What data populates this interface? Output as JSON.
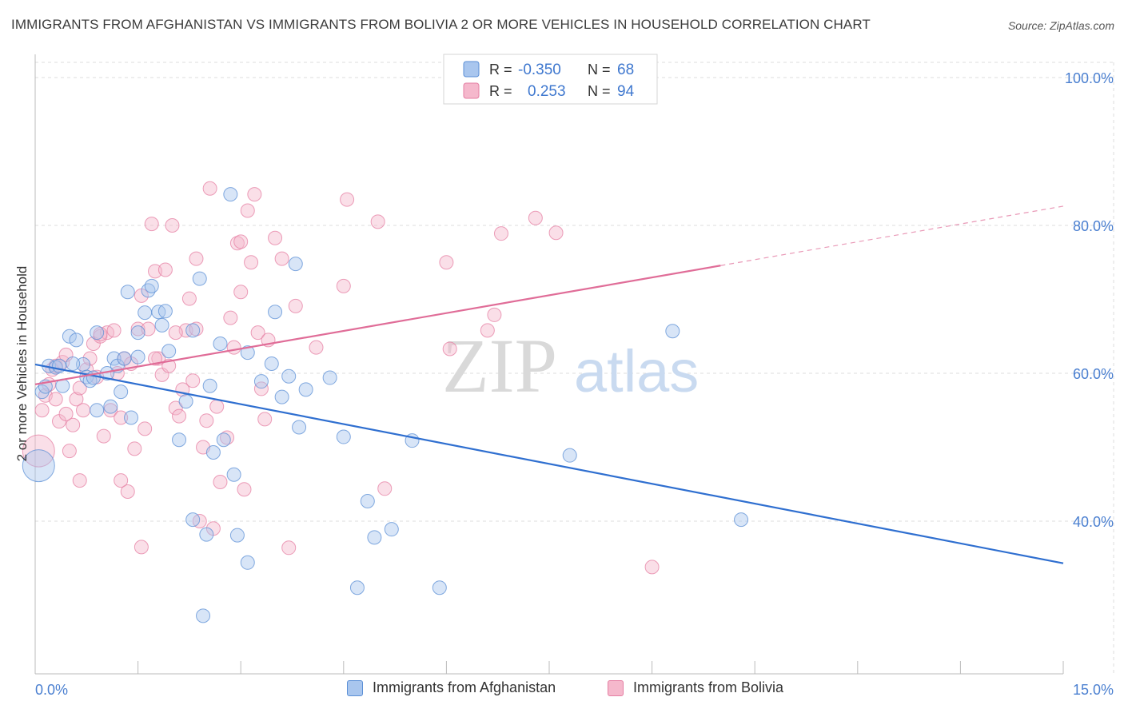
{
  "title": "IMMIGRANTS FROM AFGHANISTAN VS IMMIGRANTS FROM BOLIVIA 2 OR MORE VEHICLES IN HOUSEHOLD CORRELATION CHART",
  "source": "Source: ZipAtlas.com",
  "watermark": {
    "zip": "ZIP",
    "atlas": "atlas"
  },
  "colors": {
    "blue_fill": "#a9c6ee",
    "blue_stroke": "#5b8fd6",
    "blue_line": "#2f6fd0",
    "pink_fill": "#f5b8cc",
    "pink_stroke": "#e57fa3",
    "pink_line": "#e06d98",
    "axis_text": "#4a7fd0",
    "grid": "#dddddd"
  },
  "legend_top": [
    {
      "r_label": "R =",
      "r_value": "-0.350",
      "n_label": "N =",
      "n_value": "68",
      "color": "blue"
    },
    {
      "r_label": "R =",
      "r_value": "0.253",
      "n_label": "N =",
      "n_value": "94",
      "color": "pink"
    }
  ],
  "legend_bottom": [
    {
      "label": "Immigrants from Afghanistan",
      "color": "blue"
    },
    {
      "label": "Immigrants from Bolivia",
      "color": "pink"
    }
  ],
  "chart_data": {
    "type": "scatter",
    "xlabel": "",
    "ylabel": "2 or more Vehicles in Household",
    "xlim": [
      0,
      15
    ],
    "ylim": [
      20,
      102
    ],
    "x_tick_labels": [
      "0.0%",
      "15.0%"
    ],
    "y_ticks": [
      40,
      60,
      80,
      100
    ],
    "y_tick_labels": [
      "40.0%",
      "60.0%",
      "80.0%",
      "100.0%"
    ],
    "grid": true,
    "series": [
      {
        "name": "Immigrants from Afghanistan",
        "color": "blue",
        "trend": {
          "x": [
            0,
            15
          ],
          "y": [
            61.2,
            34.3
          ],
          "dashed_from": null
        },
        "points": [
          [
            0.05,
            47.5,
            2
          ],
          [
            0.1,
            57.5,
            1
          ],
          [
            0.15,
            58.2,
            1
          ],
          [
            0.2,
            61.0,
            1
          ],
          [
            0.3,
            60.8,
            1
          ],
          [
            0.4,
            58.3,
            1
          ],
          [
            0.5,
            65.0,
            1
          ],
          [
            0.6,
            64.5,
            1
          ],
          [
            0.7,
            61.2,
            1
          ],
          [
            0.75,
            59.5,
            1
          ],
          [
            0.8,
            59.0,
            1
          ],
          [
            0.9,
            65.5,
            1
          ],
          [
            0.9,
            55.0,
            1
          ],
          [
            1.1,
            55.5,
            1
          ],
          [
            1.15,
            62.0,
            1
          ],
          [
            1.2,
            61.0,
            1
          ],
          [
            1.25,
            57.5,
            1
          ],
          [
            1.3,
            62.0,
            1
          ],
          [
            1.35,
            71.0,
            1
          ],
          [
            1.4,
            54.0,
            1
          ],
          [
            1.5,
            62.2,
            1
          ],
          [
            1.5,
            65.5,
            1
          ],
          [
            1.6,
            68.2,
            1
          ],
          [
            1.65,
            71.2,
            1
          ],
          [
            1.7,
            71.8,
            1
          ],
          [
            1.8,
            68.3,
            1
          ],
          [
            1.85,
            66.5,
            1
          ],
          [
            1.95,
            63.0,
            1
          ],
          [
            2.1,
            51.0,
            1
          ],
          [
            2.2,
            56.2,
            1
          ],
          [
            2.3,
            40.2,
            1
          ],
          [
            2.3,
            65.8,
            1
          ],
          [
            2.4,
            72.8,
            1
          ],
          [
            2.5,
            38.2,
            1
          ],
          [
            2.55,
            58.3,
            1
          ],
          [
            2.6,
            49.3,
            1
          ],
          [
            2.7,
            64.0,
            1
          ],
          [
            2.75,
            51.0,
            1
          ],
          [
            2.85,
            84.2,
            1
          ],
          [
            2.9,
            46.3,
            1
          ],
          [
            2.95,
            38.1,
            1
          ],
          [
            3.1,
            34.4,
            1
          ],
          [
            3.1,
            62.8,
            1
          ],
          [
            3.3,
            58.9,
            1
          ],
          [
            3.45,
            61.3,
            1
          ],
          [
            3.5,
            68.3,
            1
          ],
          [
            3.6,
            56.8,
            1
          ],
          [
            3.7,
            59.6,
            1
          ],
          [
            3.8,
            74.8,
            1
          ],
          [
            3.85,
            52.7,
            1
          ],
          [
            3.95,
            57.8,
            1
          ],
          [
            4.3,
            59.4,
            1
          ],
          [
            4.5,
            51.4,
            1
          ],
          [
            4.7,
            31.0,
            1
          ],
          [
            4.85,
            42.7,
            1
          ],
          [
            4.95,
            37.8,
            1
          ],
          [
            5.2,
            38.9,
            1
          ],
          [
            5.5,
            50.9,
            1
          ],
          [
            5.9,
            31.0,
            1
          ],
          [
            7.8,
            48.9,
            1
          ],
          [
            10.3,
            40.2,
            1
          ],
          [
            2.45,
            27.2,
            1
          ],
          [
            0.55,
            61.3,
            1
          ],
          [
            1.05,
            60.0,
            1
          ],
          [
            0.35,
            61.0,
            1
          ],
          [
            1.9,
            68.4,
            1
          ],
          [
            9.3,
            65.7,
            1
          ],
          [
            0.85,
            59.4,
            1
          ]
        ]
      },
      {
        "name": "Immigrants from Bolivia",
        "color": "pink",
        "trend": {
          "x": [
            0,
            15
          ],
          "y": [
            58.5,
            82.6
          ],
          "dashed_from": 10.0
        },
        "points": [
          [
            0.05,
            49.5,
            2
          ],
          [
            0.1,
            55.0,
            1
          ],
          [
            0.15,
            57.0,
            1
          ],
          [
            0.2,
            58.5,
            1
          ],
          [
            0.25,
            60.5,
            1
          ],
          [
            0.3,
            56.5,
            1
          ],
          [
            0.35,
            53.5,
            1
          ],
          [
            0.4,
            61.5,
            1
          ],
          [
            0.45,
            62.5,
            1
          ],
          [
            0.5,
            49.5,
            1
          ],
          [
            0.55,
            53.0,
            1
          ],
          [
            0.6,
            56.5,
            1
          ],
          [
            0.65,
            58.0,
            1
          ],
          [
            0.7,
            55.0,
            1
          ],
          [
            0.75,
            60.5,
            1
          ],
          [
            0.8,
            62.0,
            1
          ],
          [
            0.85,
            64.0,
            1
          ],
          [
            0.9,
            59.5,
            1
          ],
          [
            0.95,
            65.0,
            1
          ],
          [
            1.0,
            51.5,
            1
          ],
          [
            1.05,
            65.5,
            1
          ],
          [
            1.1,
            55.0,
            1
          ],
          [
            1.15,
            65.8,
            1
          ],
          [
            1.2,
            60.0,
            1
          ],
          [
            1.25,
            54.0,
            1
          ],
          [
            1.3,
            62.0,
            1
          ],
          [
            1.35,
            44.0,
            1
          ],
          [
            1.4,
            61.3,
            1
          ],
          [
            1.45,
            49.8,
            1
          ],
          [
            1.5,
            66.0,
            1
          ],
          [
            1.55,
            36.5,
            1
          ],
          [
            1.6,
            52.5,
            1
          ],
          [
            1.65,
            66.0,
            1
          ],
          [
            1.7,
            80.2,
            1
          ],
          [
            1.75,
            73.8,
            1
          ],
          [
            1.8,
            62.0,
            1
          ],
          [
            1.85,
            59.8,
            1
          ],
          [
            1.9,
            74.0,
            1
          ],
          [
            1.95,
            61.0,
            1
          ],
          [
            2.0,
            80.0,
            1
          ],
          [
            2.05,
            55.3,
            1
          ],
          [
            2.1,
            54.2,
            1
          ],
          [
            2.15,
            57.8,
            1
          ],
          [
            2.2,
            65.8,
            1
          ],
          [
            2.25,
            70.1,
            1
          ],
          [
            2.3,
            59.0,
            1
          ],
          [
            2.35,
            75.5,
            1
          ],
          [
            2.4,
            40.0,
            1
          ],
          [
            2.45,
            50.0,
            1
          ],
          [
            2.5,
            53.6,
            1
          ],
          [
            2.55,
            85.0,
            1
          ],
          [
            2.6,
            39.0,
            1
          ],
          [
            2.7,
            45.3,
            1
          ],
          [
            2.8,
            51.3,
            1
          ],
          [
            2.85,
            67.5,
            1
          ],
          [
            2.9,
            63.5,
            1
          ],
          [
            2.95,
            77.6,
            1
          ],
          [
            3.0,
            71.0,
            1
          ],
          [
            3.05,
            44.3,
            1
          ],
          [
            3.1,
            82.0,
            1
          ],
          [
            3.15,
            75.0,
            1
          ],
          [
            3.2,
            84.2,
            1
          ],
          [
            3.25,
            65.5,
            1
          ],
          [
            3.3,
            57.9,
            1
          ],
          [
            3.35,
            53.8,
            1
          ],
          [
            3.4,
            64.5,
            1
          ],
          [
            3.5,
            78.3,
            1
          ],
          [
            3.6,
            75.5,
            1
          ],
          [
            3.7,
            36.4,
            1
          ],
          [
            3.8,
            69.1,
            1
          ],
          [
            4.1,
            63.5,
            1
          ],
          [
            4.5,
            71.8,
            1
          ],
          [
            4.55,
            83.5,
            1
          ],
          [
            5.0,
            80.5,
            1
          ],
          [
            5.1,
            44.4,
            1
          ],
          [
            6.0,
            75.0,
            1
          ],
          [
            6.05,
            63.3,
            1
          ],
          [
            6.6,
            65.8,
            1
          ],
          [
            6.7,
            67.9,
            1
          ],
          [
            6.8,
            78.9,
            1
          ],
          [
            7.3,
            81.0,
            1
          ],
          [
            7.6,
            79.0,
            1
          ],
          [
            9.0,
            33.8,
            1
          ],
          [
            0.3,
            61.0,
            1
          ],
          [
            0.45,
            54.5,
            1
          ],
          [
            0.65,
            45.5,
            1
          ],
          [
            0.95,
            65.3,
            1
          ],
          [
            1.25,
            45.5,
            1
          ],
          [
            1.75,
            62.0,
            1
          ],
          [
            2.05,
            65.5,
            1
          ],
          [
            2.35,
            66.0,
            1
          ],
          [
            2.65,
            55.5,
            1
          ],
          [
            3.0,
            77.8,
            1
          ],
          [
            1.55,
            70.5,
            1
          ]
        ]
      }
    ]
  }
}
